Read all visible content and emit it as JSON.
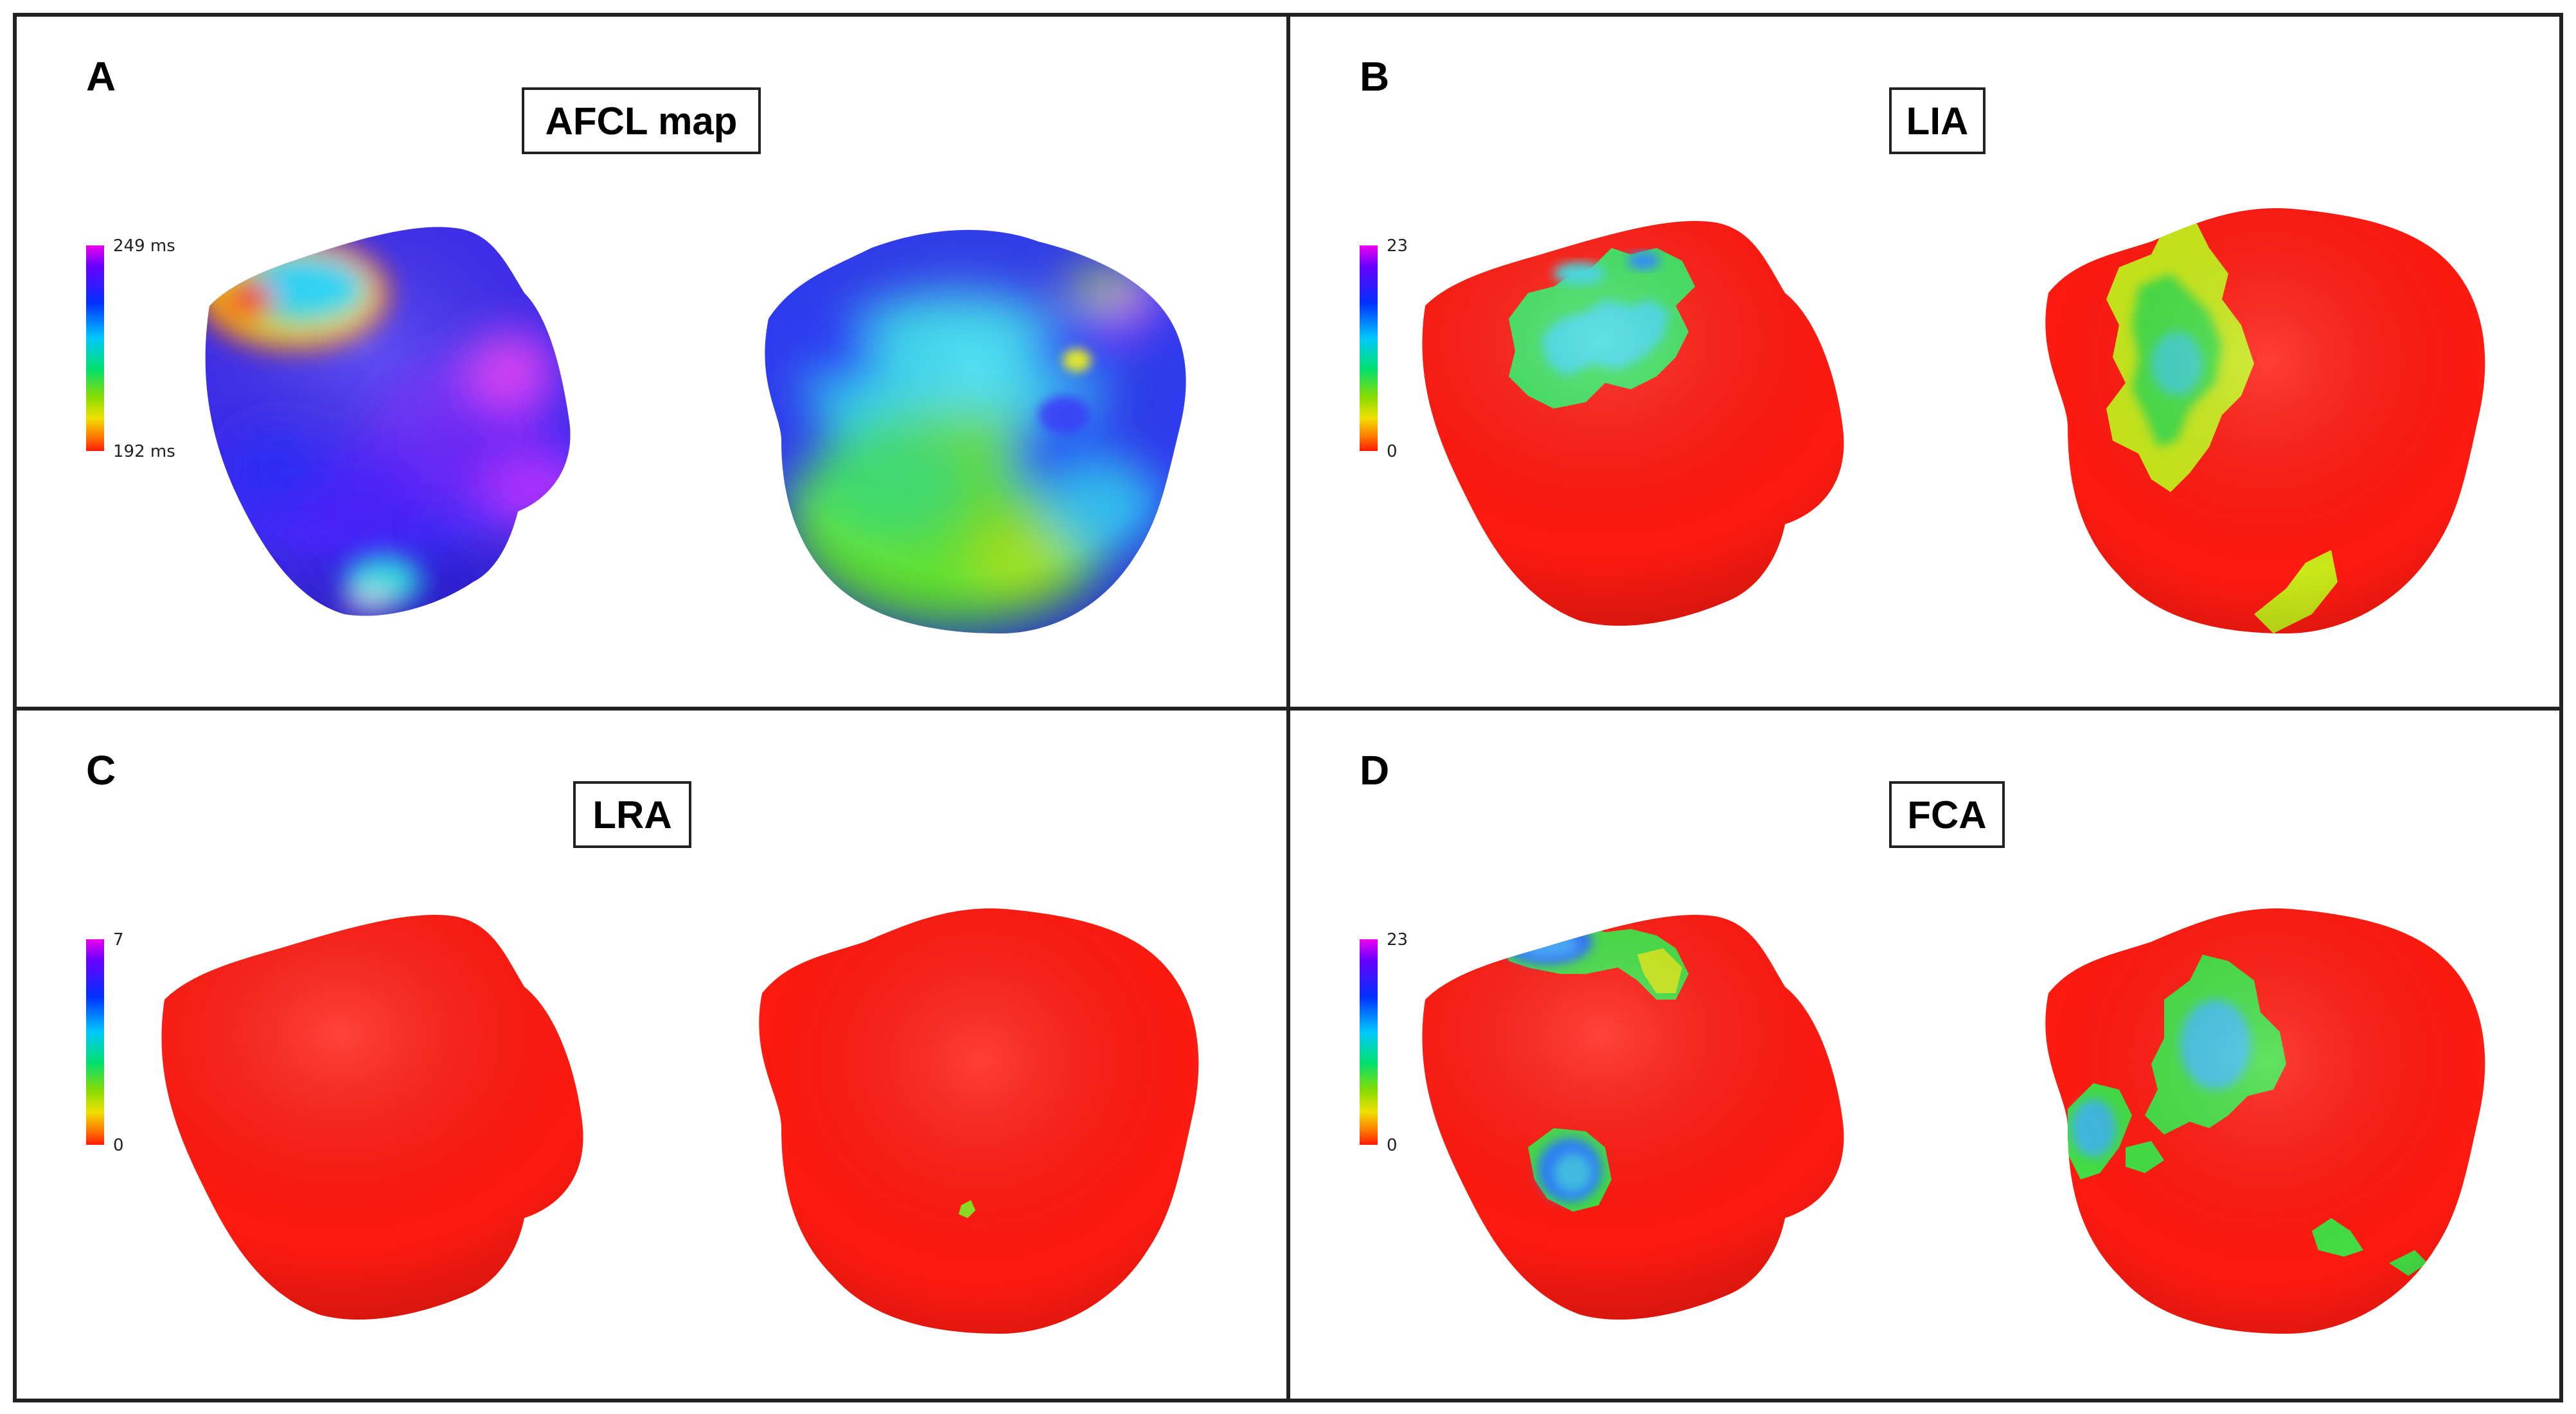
{
  "panels": [
    {
      "id": "A",
      "letter": "A",
      "title": "AFCL map",
      "scale_max": "249 ms",
      "scale_min": "192 ms"
    },
    {
      "id": "B",
      "letter": "B",
      "title": "LIA",
      "scale_max": "23",
      "scale_min": "0"
    },
    {
      "id": "C",
      "letter": "C",
      "title": "LRA",
      "scale_max": "7",
      "scale_min": "0"
    },
    {
      "id": "D",
      "letter": "D",
      "title": "FCA",
      "scale_max": "23",
      "scale_min": "0"
    }
  ],
  "colors": {
    "tissue_red": "#ff1a10",
    "magenta": "#cc33ff",
    "blue": "#2a3cff",
    "cyan": "#36e6f0",
    "green": "#33dd44",
    "yellow": "#d8ee10"
  }
}
